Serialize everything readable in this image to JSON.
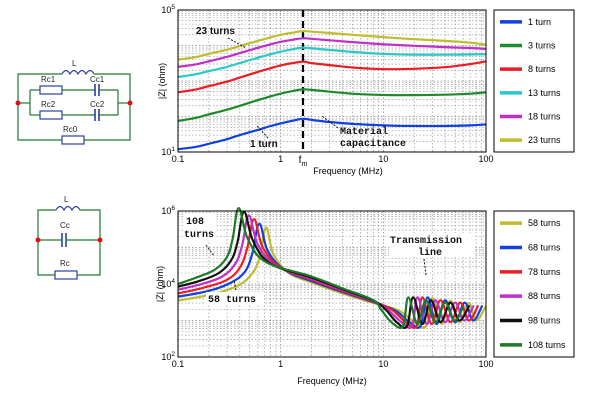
{
  "colors": {
    "blue": "#1040e0",
    "green": "#1f8a2a",
    "red": "#ec1c24",
    "cyan": "#2ac8c8",
    "magenta": "#c030c8",
    "olive": "#bdbd2e",
    "black": "#111111",
    "dkgreen": "#1b7a24",
    "circuit_wire": "#1e7a2e",
    "circuit_box": "#2b3f9e",
    "node_dot": "#e0101a"
  },
  "circuits": [
    {
      "labels": [
        "L",
        "Rc1",
        "Cc1",
        "Rc2",
        "Cc2",
        "Rc0"
      ]
    },
    {
      "labels": [
        "L",
        "Cc",
        "Rc"
      ]
    }
  ],
  "chart_data": [
    {
      "type": "line",
      "xlabel": "Frequency (MHz)",
      "ylabel": "|Z| (ohm)",
      "xscale": "log",
      "yscale": "log",
      "xlim": [
        0.1,
        100
      ],
      "ylim": [
        10,
        100000
      ],
      "xticks": [
        "0.1",
        "1",
        "10",
        "100"
      ],
      "yticks": [
        "10^1",
        "10^5"
      ],
      "special_tick": "f_m",
      "fm_mhz": 1.65,
      "grid": true,
      "legend": "right",
      "annotations": [
        "23 turns",
        "1 turn",
        "Material",
        "capacitance"
      ],
      "x": [
        0.1,
        0.15,
        0.2,
        0.3,
        0.4,
        0.6,
        0.8,
        1,
        1.3,
        1.65,
        2,
        3,
        5,
        8,
        12,
        20,
        40,
        70,
        100
      ],
      "series": [
        {
          "name": "1 turn",
          "color": "blue",
          "values": [
            12,
            14,
            17,
            23,
            30,
            42,
            54,
            64,
            76,
            86,
            80,
            70,
            62,
            58,
            55,
            54,
            54,
            56,
            60
          ]
        },
        {
          "name": "3 turns",
          "color": "green",
          "values": [
            75,
            92,
            115,
            155,
            200,
            290,
            370,
            440,
            520,
            580,
            560,
            500,
            440,
            410,
            400,
            400,
            410,
            440,
            480
          ]
        },
        {
          "name": "8 turns",
          "color": "red",
          "values": [
            480,
            580,
            720,
            960,
            1250,
            1800,
            2300,
            2750,
            3200,
            3500,
            3200,
            2800,
            2400,
            2200,
            2150,
            2200,
            2450,
            3000,
            3600
          ]
        },
        {
          "name": "13 turns",
          "color": "cyan",
          "values": [
            1300,
            1550,
            1900,
            2500,
            3200,
            4500,
            5700,
            6700,
            7800,
            8700,
            8300,
            7500,
            6600,
            6000,
            5700,
            5500,
            5500,
            5600,
            5700
          ]
        },
        {
          "name": "18 turns",
          "color": "magenta",
          "values": [
            2500,
            2950,
            3600,
            4800,
            6100,
            8600,
            10800,
            12700,
            14500,
            16000,
            15400,
            14000,
            12500,
            11300,
            10500,
            9800,
            9000,
            8500,
            8000
          ]
        },
        {
          "name": "23 turns",
          "color": "olive",
          "values": [
            4000,
            4700,
            5800,
            7600,
            9700,
            13500,
            17000,
            20000,
            23000,
            25500,
            24500,
            22500,
            20000,
            18000,
            16500,
            15000,
            13500,
            12000,
            10500
          ]
        }
      ]
    },
    {
      "type": "line",
      "xlabel": "Frequency (MHz)",
      "ylabel": "|Z| (ohm)",
      "xscale": "log",
      "yscale": "log",
      "xlim": [
        0.1,
        100
      ],
      "ylim": [
        100,
        1000000
      ],
      "xticks": [
        "0.1",
        "1",
        "10",
        "100"
      ],
      "yticks": [
        "10^2",
        "10^4",
        "10^6"
      ],
      "grid": true,
      "legend": "right",
      "annotations": [
        "108",
        "turns",
        "58 turns",
        "Transmission",
        "line"
      ],
      "series": [
        {
          "name": "58 turns",
          "color": "olive",
          "x": [
            0.1,
            0.2,
            0.35,
            0.5,
            0.62,
            0.72,
            0.85,
            1.2,
            2,
            4,
            8,
            14,
            20,
            26,
            30,
            37,
            45,
            55,
            68,
            80,
            100
          ],
          "values": [
            3500,
            5000,
            8000,
            16000,
            50000,
            350000,
            65000,
            20000,
            11000,
            5500,
            3000,
            1900,
            900,
            700,
            4200,
            800,
            3500,
            900,
            3000,
            1000,
            2500
          ]
        },
        {
          "name": "68 turns",
          "color": "blue",
          "x": [
            0.1,
            0.2,
            0.33,
            0.45,
            0.53,
            0.62,
            0.75,
            1.1,
            2,
            4,
            8,
            13,
            18,
            23,
            27,
            33,
            40,
            50,
            62,
            75,
            92
          ],
          "values": [
            4500,
            6500,
            11000,
            22000,
            70000,
            450000,
            80000,
            24000,
            12000,
            6000,
            3200,
            1900,
            900,
            700,
            4300,
            800,
            3600,
            900,
            3100,
            1000,
            2600
          ]
        },
        {
          "name": "78 turns",
          "color": "red",
          "x": [
            0.1,
            0.18,
            0.3,
            0.4,
            0.47,
            0.55,
            0.67,
            1,
            2,
            4,
            8,
            12,
            16.5,
            21,
            24,
            29.5,
            36,
            45,
            56,
            68,
            84
          ],
          "values": [
            5500,
            8000,
            13000,
            28000,
            90000,
            600000,
            100000,
            28000,
            13000,
            6400,
            3300,
            2000,
            900,
            700,
            4300,
            800,
            3600,
            900,
            3100,
            1000,
            2600
          ]
        },
        {
          "name": "88 turns",
          "color": "magenta",
          "x": [
            0.1,
            0.17,
            0.27,
            0.36,
            0.42,
            0.49,
            0.6,
            0.9,
            2,
            4,
            8,
            11,
            15,
            19,
            21.5,
            26.5,
            32,
            40,
            50,
            61,
            76
          ],
          "values": [
            7000,
            10000,
            16000,
            35000,
            110000,
            750000,
            120000,
            32000,
            14000,
            6800,
            3400,
            2000,
            900,
            700,
            4300,
            800,
            3600,
            900,
            3100,
            1000,
            2600
          ]
        },
        {
          "name": "98 turns",
          "color": "black",
          "x": [
            0.1,
            0.16,
            0.25,
            0.33,
            0.38,
            0.44,
            0.54,
            0.8,
            2,
            4,
            8,
            10.5,
            13.5,
            17,
            19.5,
            24,
            29,
            36,
            45,
            55,
            69
          ],
          "values": [
            8500,
            12000,
            20000,
            45000,
            140000,
            950000,
            150000,
            36000,
            15000,
            7200,
            3500,
            2000,
            900,
            700,
            4300,
            800,
            3600,
            900,
            3100,
            1000,
            2600
          ]
        },
        {
          "name": "108 turns",
          "color": "dkgreen",
          "x": [
            0.1,
            0.15,
            0.23,
            0.3,
            0.34,
            0.39,
            0.48,
            0.72,
            2,
            4,
            8,
            9.5,
            12,
            15.5,
            17.5,
            21.5,
            26,
            32,
            40,
            49,
            61
          ],
          "values": [
            10000,
            15000,
            25000,
            55000,
            170000,
            1200000,
            170000,
            40000,
            16000,
            7600,
            3600,
            2000,
            900,
            700,
            4300,
            800,
            3600,
            900,
            3100,
            1000,
            2600
          ]
        }
      ]
    }
  ]
}
